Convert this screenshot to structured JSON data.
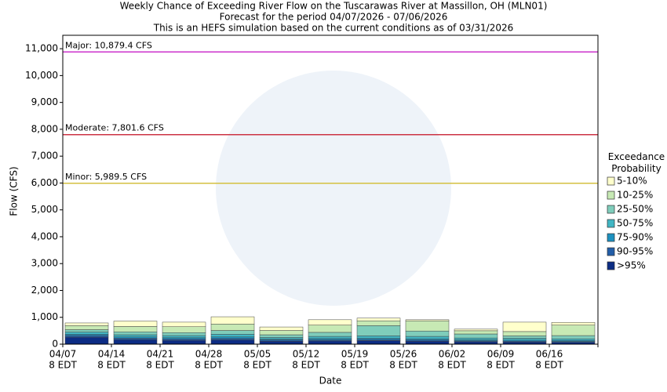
{
  "chart_data": {
    "type": "stacked-bar",
    "title": [
      "Weekly Chance of Exceeding River Flow on the Tuscarawas River at Massillon, OH (MLN01)",
      "Forecast for the period 04/07/2026 - 07/06/2026",
      "This is an HEFS simulation based on the current conditions as of 03/31/2026"
    ],
    "y_label": "Flow (CFS)",
    "x_label": "Date",
    "categories": [
      "04/07",
      "04/14",
      "04/21",
      "04/28",
      "05/05",
      "05/12",
      "05/19",
      "05/26",
      "06/02",
      "06/09",
      "06/16"
    ],
    "category_time": "8 EDT",
    "ylim": [
      0,
      11500
    ],
    "yticks": [
      0,
      {
        "value": 1000,
        "label": "1,000"
      },
      {
        "value": 2000,
        "label": "2,000"
      },
      {
        "value": 3000,
        "label": "3,000"
      },
      {
        "value": 4000,
        "label": "4,000"
      },
      {
        "value": 5000,
        "label": "5,000"
      },
      {
        "value": 6000,
        "label": "6,000"
      },
      {
        "value": 7000,
        "label": "7,000"
      },
      {
        "value": 8000,
        "label": "8,000"
      },
      {
        "value": 9000,
        "label": "9,000"
      },
      {
        "value": 10000,
        "label": "10,000"
      },
      {
        "value": 11000,
        "label": "11,000"
      }
    ],
    "legend_title": "Exceedance Probability",
    "series": [
      {
        "name": ">95%",
        "color": "#0c2c84",
        "values": [
          260,
          170,
          140,
          160,
          110,
          120,
          130,
          110,
          90,
          80,
          70
        ]
      },
      {
        "name": "90-95%",
        "color": "#225ea8",
        "values": [
          60,
          50,
          50,
          50,
          40,
          40,
          40,
          40,
          30,
          30,
          30
        ]
      },
      {
        "name": "75-90%",
        "color": "#1d91c0",
        "values": [
          50,
          50,
          50,
          60,
          40,
          50,
          50,
          50,
          40,
          40,
          40
        ]
      },
      {
        "name": "50-75%",
        "color": "#41b6c4",
        "values": [
          80,
          80,
          80,
          100,
          60,
          80,
          90,
          90,
          70,
          70,
          60
        ]
      },
      {
        "name": "25-50%",
        "color": "#7fcdbb",
        "values": [
          90,
          110,
          110,
          140,
          100,
          150,
          380,
          200,
          150,
          90,
          120
        ]
      },
      {
        "name": "10-25%",
        "color": "#c7e9b4",
        "values": [
          150,
          200,
          220,
          240,
          160,
          270,
          180,
          380,
          120,
          160,
          390
        ]
      },
      {
        "name": "5-10%",
        "color": "#ffffcc",
        "values": [
          100,
          200,
          170,
          270,
          130,
          200,
          100,
          40,
          60,
          350,
          100
        ]
      }
    ],
    "thresholds": [
      {
        "label": "Major: 10,879.4 CFS",
        "value": 10879.4,
        "color": "#cc33cc"
      },
      {
        "label": "Moderate: 7,801.6 CFS",
        "value": 7801.6,
        "color": "#cc3344"
      },
      {
        "label": "Minor: 5,989.5 CFS",
        "value": 5989.5,
        "color": "#d4c040"
      }
    ]
  }
}
